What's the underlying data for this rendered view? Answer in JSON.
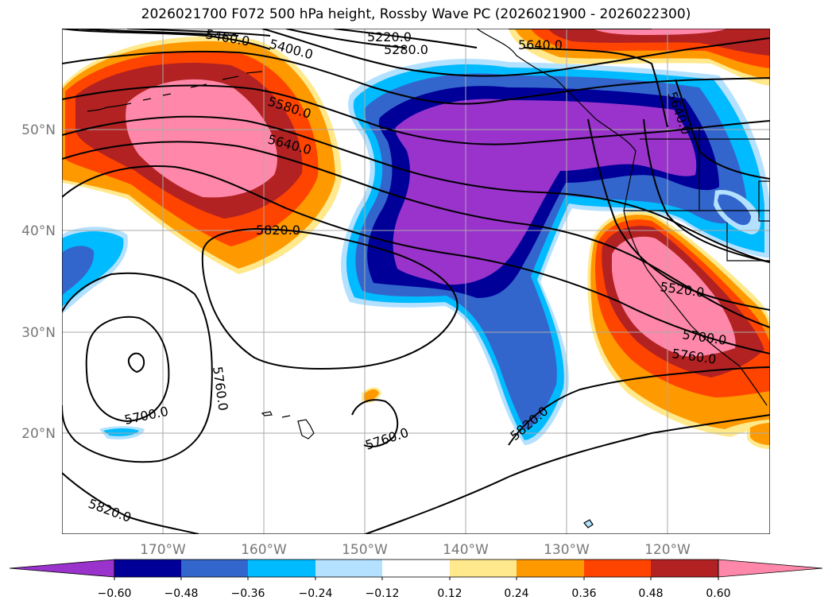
{
  "title": "2026021700 F072 500 hPa height, Rossby Wave PC (2026021900 - 2026022300)",
  "map": {
    "lat_ticks": [
      "50°N",
      "40°N",
      "30°N",
      "20°N"
    ],
    "lon_ticks": [
      "170°W",
      "160°W",
      "150°W",
      "140°W",
      "130°W",
      "120°W"
    ],
    "grid": true,
    "contour_labels": [
      "5460.0",
      "5400.0",
      "5220.0",
      "5280.0",
      "5580.0",
      "5640.0",
      "5820.0",
      "5700.0",
      "5760.0",
      "5760.0",
      "5820.0",
      "5820.0",
      "5520.0",
      "5700.0",
      "5760.0",
      "5640.0",
      "5640.0",
      "5580.0"
    ]
  },
  "colorbar": {
    "colors": [
      "#9933cc",
      "#000099",
      "#3366cc",
      "#00bbff",
      "#b3e1ff",
      "#ffffff",
      "#ffe98c",
      "#ff9900",
      "#ff4400",
      "#b22222",
      "#ff88aa"
    ],
    "ticks": [
      "−0.60",
      "−0.48",
      "−0.36",
      "−0.24",
      "−0.12",
      "0.12",
      "0.24",
      "0.36",
      "0.48",
      "0.60"
    ]
  }
}
